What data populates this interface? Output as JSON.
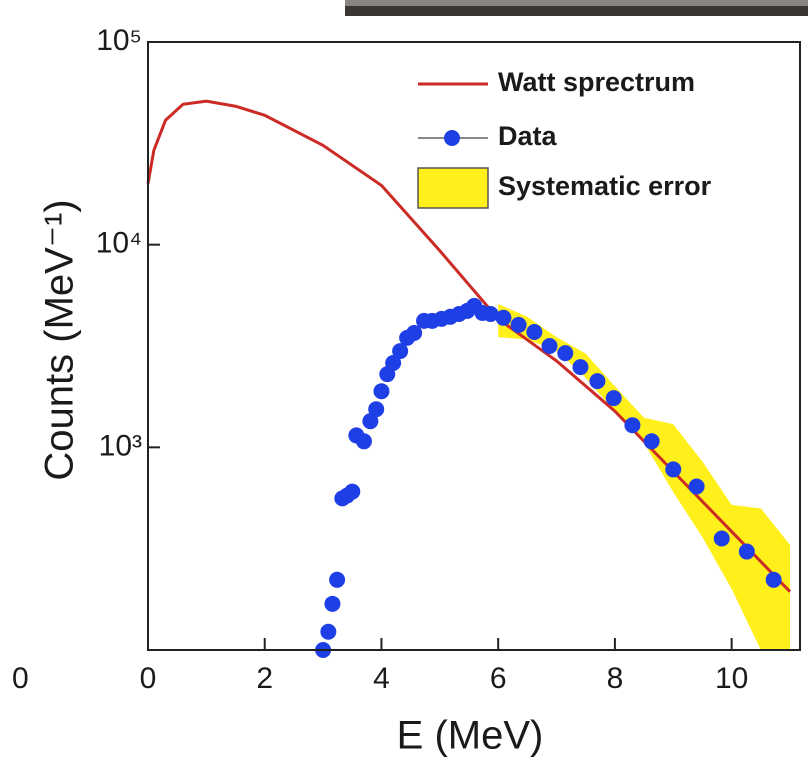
{
  "chart_data": {
    "type": "line",
    "y_log": true,
    "x_label": "E (MeV)",
    "y_label": "Counts (MeV⁻¹)",
    "fragment_label": "0",
    "xlim": [
      0,
      11
    ],
    "ylim": [
      100,
      100000
    ],
    "xticks": [
      0,
      2,
      4,
      6,
      8,
      10
    ],
    "yticks": [
      {
        "value": 1000,
        "label": "10³"
      },
      {
        "value": 10000,
        "label": "10⁴"
      },
      {
        "value": 100000,
        "label": "10⁵"
      }
    ],
    "series": [
      {
        "name": "Watt sprectrum",
        "kind": "line",
        "color": "#cc2b25",
        "x": [
          0,
          0.1,
          0.3,
          0.6,
          1.0,
          1.5,
          2.0,
          3.0,
          4.0,
          5.0,
          6.0,
          7.0,
          8.0,
          9.0,
          10.0,
          11.0
        ],
        "values": [
          20000,
          29200,
          41100,
          49300,
          51100,
          48200,
          43500,
          30900,
          19600,
          9330,
          4305,
          2670,
          1507,
          760,
          384,
          194
        ]
      },
      {
        "name": "Data",
        "kind": "scatter",
        "color": "#1f3fe6",
        "x": [
          3.0,
          3.09,
          3.16,
          3.24,
          3.33,
          3.41,
          3.5,
          3.57,
          3.7,
          3.81,
          3.91,
          4.0,
          4.1,
          4.2,
          4.32,
          4.44,
          4.56,
          4.73,
          4.87,
          5.03,
          5.18,
          5.33,
          5.47,
          5.59,
          5.73,
          5.87,
          6.09,
          6.35,
          6.62,
          6.88,
          7.15,
          7.41,
          7.7,
          7.98,
          8.3,
          8.63,
          9.0,
          9.4,
          9.83,
          10.26,
          10.72
        ],
        "values": [
          100,
          123,
          169,
          222,
          560,
          578,
          605,
          1145,
          1071,
          1346,
          1542,
          1892,
          2296,
          2606,
          2985,
          3467,
          3666,
          4207,
          4207,
          4305,
          4406,
          4550,
          4710,
          4990,
          4605,
          4550,
          4356,
          4018,
          3707,
          3162,
          2917,
          2488,
          2122,
          1749,
          1286,
          1071,
          778,
          641,
          355,
          306,
          222
        ]
      },
      {
        "name": "Systematic error",
        "kind": "band",
        "color": "#fff01c",
        "x": [
          6.0,
          6.5,
          7.0,
          7.5,
          8.0,
          8.5,
          9.0,
          9.5,
          10.0,
          10.5,
          11.0
        ],
        "upper": [
          5100,
          4400,
          3500,
          2900,
          2000,
          1400,
          1300,
          850,
          520,
          500,
          330
        ],
        "lower": [
          3500,
          3400,
          3000,
          2200,
          1500,
          1050,
          600,
          360,
          200,
          100,
          100
        ]
      }
    ]
  }
}
